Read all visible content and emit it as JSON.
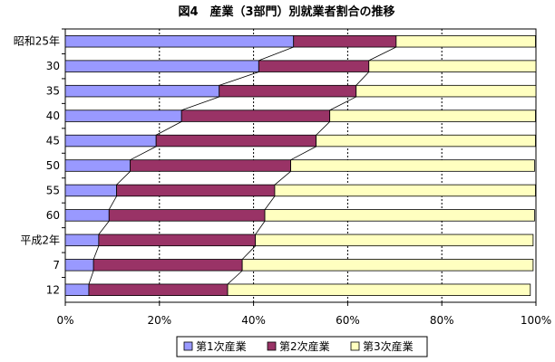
{
  "chart_data": {
    "type": "bar",
    "orientation": "horizontal",
    "stacked": "percent",
    "title": "図4　産業（3部門）別就業者割合の推移",
    "categories": [
      "昭和25年",
      "30",
      "35",
      "40",
      "45",
      "50",
      "55",
      "60",
      "平成2年",
      "7",
      "12"
    ],
    "series": [
      {
        "name": "第1次産業",
        "color": "#9999ff",
        "values": [
          48.5,
          41.1,
          32.7,
          24.7,
          19.3,
          13.8,
          10.9,
          9.3,
          7.1,
          6.0,
          5.0
        ]
      },
      {
        "name": "第2次産業",
        "color": "#993366",
        "values": [
          21.8,
          23.4,
          29.1,
          31.5,
          34.0,
          34.1,
          33.6,
          33.1,
          33.3,
          31.6,
          29.5
        ]
      },
      {
        "name": "第3次産業",
        "color": "#ffffc0",
        "values": [
          29.6,
          35.5,
          38.2,
          43.7,
          46.6,
          51.8,
          55.4,
          57.3,
          59.0,
          61.8,
          64.3
        ]
      }
    ],
    "xlim": [
      0,
      100
    ],
    "x_ticks": [
      "0%",
      "20%",
      "40%",
      "60%",
      "80%",
      "100%"
    ],
    "grid": true,
    "series_lines": true,
    "legend_position": "bottom"
  }
}
